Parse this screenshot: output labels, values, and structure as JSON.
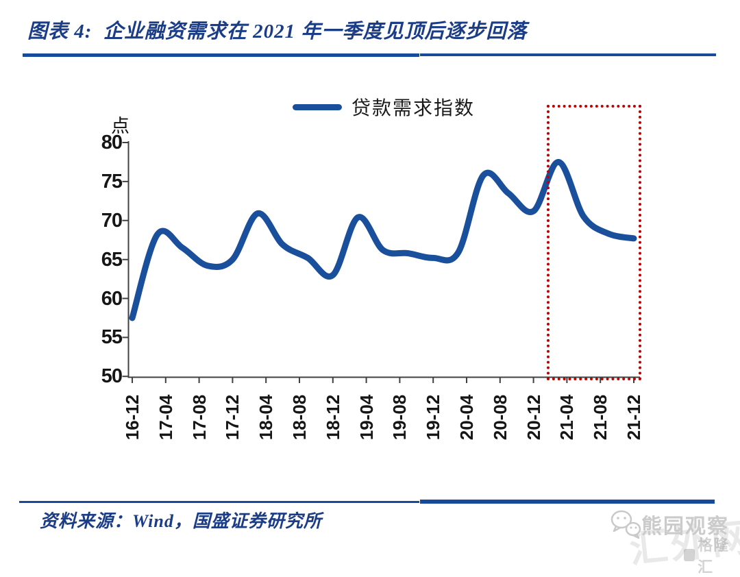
{
  "figure": {
    "title": "图表 4:  企业融资需求在 2021 年一季度见顶后逐步回落",
    "source": "资料来源：Wind，国盛证券研究所"
  },
  "legend": {
    "label": "贷款需求指数"
  },
  "watermark": {
    "wechat_account": "熊园观察",
    "badge": "格隆汇",
    "background_text": "汇外网"
  },
  "colors": {
    "line_blue": "#1A4F9C",
    "title_blue": "#1B3C87",
    "rule_blue": "#17499C",
    "highlight_red": "#C00000",
    "axis_gray": "#404040",
    "watermark_gray": "#C9C9C9"
  },
  "chart_data": {
    "type": "line",
    "title": "企业融资需求在 2021 年一季度见顶后逐步回落",
    "unit": "点",
    "ylabel": "点",
    "xlabel": "",
    "ylim": [
      50,
      80
    ],
    "ytick_step": 5,
    "y_tick_labels": [
      80,
      75,
      70,
      65,
      60,
      55,
      50
    ],
    "x_tick_labels": [
      "16-12",
      "17-04",
      "17-08",
      "17-12",
      "18-04",
      "18-08",
      "18-12",
      "19-04",
      "19-08",
      "19-12",
      "20-04",
      "20-08",
      "20-12",
      "21-04",
      "21-08",
      "21-12"
    ],
    "grid": false,
    "legend_position": "top-center",
    "series": [
      {
        "name": "贷款需求指数",
        "color": "#1A4F9C",
        "x": [
          "2016-12",
          "2017-03",
          "2017-06",
          "2017-09",
          "2017-12",
          "2018-03",
          "2018-06",
          "2018-09",
          "2018-12",
          "2019-03",
          "2019-06",
          "2019-09",
          "2019-12",
          "2020-03",
          "2020-06",
          "2020-09",
          "2020-12",
          "2021-03",
          "2021-06",
          "2021-09",
          "2021-12"
        ],
        "values": [
          57.5,
          68.2,
          66.5,
          64.2,
          65.0,
          70.9,
          66.9,
          65.2,
          63.0,
          70.4,
          66.2,
          65.8,
          65.2,
          65.9,
          75.8,
          73.5,
          71.2,
          77.5,
          70.5,
          68.3,
          67.7
        ]
      }
    ],
    "annotation": {
      "type": "dotted-box",
      "color": "#C00000",
      "x_from": "2021-02",
      "x_to": "2021-12",
      "y_span": "full-height"
    }
  }
}
